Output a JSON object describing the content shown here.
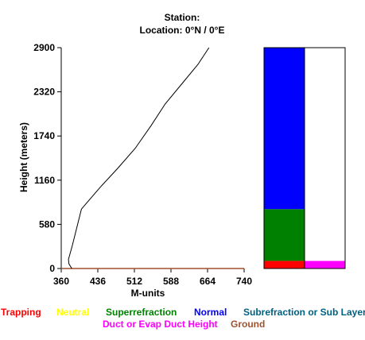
{
  "header": {
    "station": "Station:",
    "location": "Location:   0°N /   0°E"
  },
  "chart_data": {
    "type": "line",
    "xlabel": "M-units",
    "ylabel": "Height (meters)",
    "xlim": [
      360,
      740
    ],
    "ylim": [
      0,
      2900
    ],
    "xticks": [
      "360",
      "436",
      "512",
      "588",
      "664",
      "740"
    ],
    "yticks": [
      "0",
      "580",
      "1160",
      "1740",
      "2320",
      "2900"
    ],
    "series": [
      {
        "x": [
          382,
          376,
          375,
          383,
          402,
          440,
          478,
          514,
          547,
          576,
          610,
          644,
          667
        ],
        "y": [
          0,
          60,
          120,
          300,
          780,
          1060,
          1320,
          1580,
          1880,
          2160,
          2420,
          2680,
          2900
        ]
      }
    ],
    "ground_line": {
      "y": 0,
      "color": "#a0522d"
    },
    "layer_bars": {
      "left": [
        {
          "from": 0,
          "to": 100,
          "color": "#ff0000"
        },
        {
          "from": 100,
          "to": 780,
          "color": "#008000"
        },
        {
          "from": 780,
          "to": 2900,
          "color": "#0000ff"
        }
      ],
      "right": [
        {
          "from": 0,
          "to": 100,
          "color": "#ff00ff"
        },
        {
          "from": 100,
          "to": 2900,
          "color": "#ffffff"
        }
      ]
    },
    "legend": [
      {
        "label": "Trapping",
        "color": "#ff0000"
      },
      {
        "label": "Neutral",
        "color": "#ffff00"
      },
      {
        "label": "Superrefraction",
        "color": "#008000"
      },
      {
        "label": "Normal",
        "color": "#0000ff"
      },
      {
        "label": "Subrefraction or Sub Layer",
        "color": "#006080"
      },
      {
        "label": "Duct or Evap Duct Height",
        "color": "#ff00ff"
      },
      {
        "label": "Ground",
        "color": "#a0522d"
      }
    ]
  }
}
